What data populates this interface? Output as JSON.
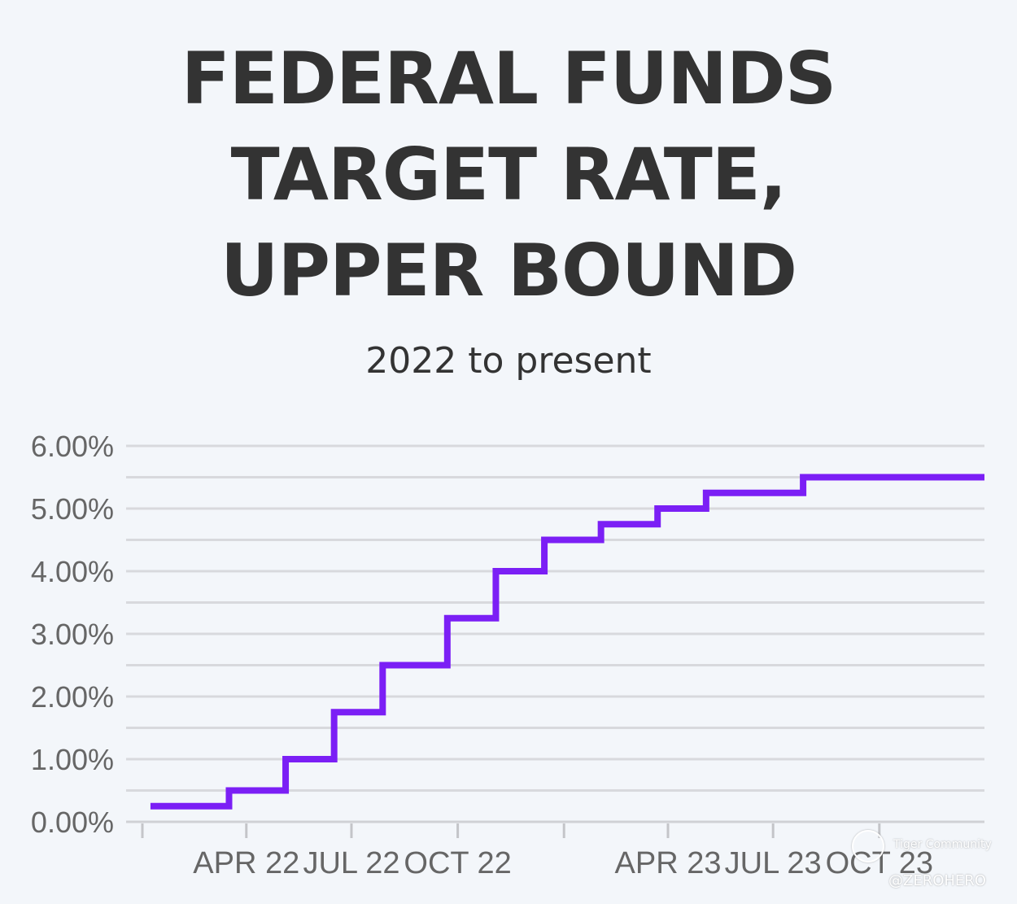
{
  "chart_data": {
    "type": "line",
    "step": true,
    "title": [
      "FEDERAL FUNDS",
      "TARGET RATE,",
      "UPPER BOUND"
    ],
    "subtitle": "2022 to present",
    "xlabel": "",
    "ylabel": "",
    "xlim": [
      "2022-01-01",
      "2023-12-31"
    ],
    "ylim": [
      0,
      6
    ],
    "y_ticks": [
      {
        "value": 0,
        "label": "0.00%"
      },
      {
        "value": 1,
        "label": "1.00%"
      },
      {
        "value": 2,
        "label": "2.00%"
      },
      {
        "value": 3,
        "label": "3.00%"
      },
      {
        "value": 4,
        "label": "4.00%"
      },
      {
        "value": 5,
        "label": "5.00%"
      },
      {
        "value": 6,
        "label": "6.00%"
      }
    ],
    "x_ticks": [
      {
        "date": "2022-01-01",
        "label": ""
      },
      {
        "date": "2022-04-01",
        "label": "APR 22"
      },
      {
        "date": "2022-07-01",
        "label": "JUL 22"
      },
      {
        "date": "2022-10-01",
        "label": "OCT 22"
      },
      {
        "date": "2023-01-01",
        "label": ""
      },
      {
        "date": "2023-04-01",
        "label": "APR 23"
      },
      {
        "date": "2023-07-01",
        "label": "JUL 23"
      },
      {
        "date": "2023-10-01",
        "label": "OCT 23"
      }
    ],
    "grid": true,
    "grid_step": 0.5,
    "legend": "none",
    "series": [
      {
        "color": "#7b1ff5",
        "points": [
          {
            "x": "2022-01-08",
            "y": 0.25
          },
          {
            "x": "2022-03-17",
            "y": 0.5
          },
          {
            "x": "2022-05-05",
            "y": 1.0
          },
          {
            "x": "2022-06-16",
            "y": 1.75
          },
          {
            "x": "2022-07-28",
            "y": 2.5
          },
          {
            "x": "2022-09-22",
            "y": 3.25
          },
          {
            "x": "2022-11-03",
            "y": 4.0
          },
          {
            "x": "2022-12-15",
            "y": 4.5
          },
          {
            "x": "2023-02-02",
            "y": 4.75
          },
          {
            "x": "2023-03-23",
            "y": 5.0
          },
          {
            "x": "2023-05-04",
            "y": 5.25
          },
          {
            "x": "2023-07-27",
            "y": 5.5
          },
          {
            "x": "2023-12-31",
            "y": 5.5
          }
        ]
      }
    ]
  },
  "watermark": {
    "brand": "Tiger Community",
    "handle": "@ZEROHERO"
  }
}
